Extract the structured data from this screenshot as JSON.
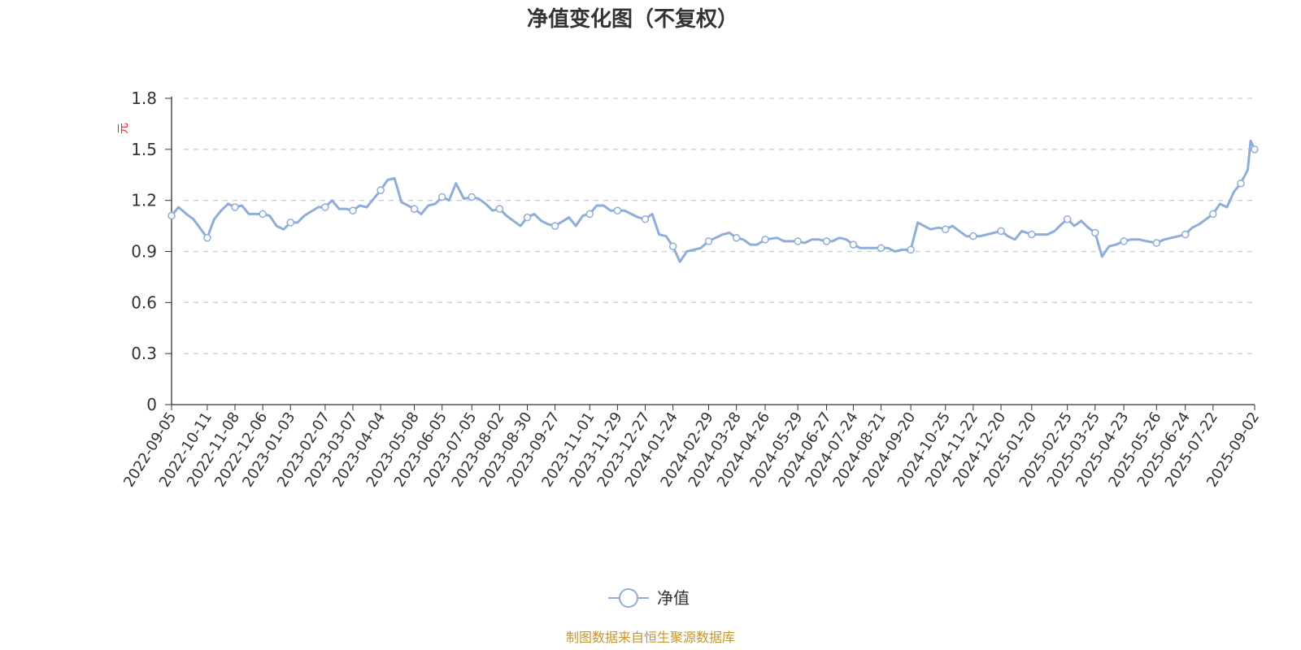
{
  "chart_data": {
    "type": "line",
    "title": "净值变化图（不复权）",
    "ylabel": "元",
    "ylim": [
      0,
      1.8
    ],
    "yticks": [
      "0",
      "0.3",
      "0.6",
      "0.9",
      "1.2",
      "1.5",
      "1.8"
    ],
    "grid": true,
    "legend_position": "bottom-center",
    "x_tick_labels": [
      "2022-09-05",
      "2022-10-11",
      "2022-11-08",
      "2022-12-06",
      "2023-01-03",
      "2023-02-07",
      "2023-03-07",
      "2023-04-04",
      "2023-05-08",
      "2023-06-05",
      "2023-07-05",
      "2023-08-02",
      "2023-08-30",
      "2023-09-27",
      "2023-11-01",
      "2023-11-29",
      "2023-12-27",
      "2024-01-24",
      "2024-02-29",
      "2024-03-28",
      "2024-04-26",
      "2024-05-29",
      "2024-06-27",
      "2024-07-24",
      "2024-08-21",
      "2024-09-20",
      "2024-10-25",
      "2024-11-22",
      "2024-12-20",
      "2025-01-20",
      "2025-02-25",
      "2025-03-25",
      "2025-04-23",
      "2025-05-26",
      "2025-06-24",
      "2025-07-22",
      "2025-09-02"
    ],
    "series": [
      {
        "name": "净值",
        "color": "#8eadd9",
        "x": [
          "2022-09-05",
          "2022-09-12",
          "2022-09-20",
          "2022-09-27",
          "2022-10-11",
          "2022-10-18",
          "2022-10-25",
          "2022-11-01",
          "2022-11-08",
          "2022-11-15",
          "2022-11-22",
          "2022-11-29",
          "2022-12-06",
          "2022-12-13",
          "2022-12-20",
          "2022-12-27",
          "2023-01-03",
          "2023-01-10",
          "2023-01-17",
          "2023-01-31",
          "2023-02-07",
          "2023-02-14",
          "2023-02-21",
          "2023-02-28",
          "2023-03-07",
          "2023-03-14",
          "2023-03-21",
          "2023-03-28",
          "2023-04-04",
          "2023-04-11",
          "2023-04-18",
          "2023-04-25",
          "2023-05-08",
          "2023-05-15",
          "2023-05-22",
          "2023-05-29",
          "2023-06-05",
          "2023-06-12",
          "2023-06-19",
          "2023-06-27",
          "2023-07-05",
          "2023-07-12",
          "2023-07-19",
          "2023-07-26",
          "2023-08-02",
          "2023-08-09",
          "2023-08-16",
          "2023-08-23",
          "2023-08-30",
          "2023-09-06",
          "2023-09-13",
          "2023-09-20",
          "2023-09-27",
          "2023-10-11",
          "2023-10-18",
          "2023-10-25",
          "2023-11-01",
          "2023-11-08",
          "2023-11-15",
          "2023-11-22",
          "2023-11-29",
          "2023-12-06",
          "2023-12-13",
          "2023-12-20",
          "2023-12-27",
          "2024-01-03",
          "2024-01-10",
          "2024-01-17",
          "2024-01-24",
          "2024-01-31",
          "2024-02-07",
          "2024-02-21",
          "2024-02-29",
          "2024-03-07",
          "2024-03-14",
          "2024-03-21",
          "2024-03-28",
          "2024-04-04",
          "2024-04-11",
          "2024-04-18",
          "2024-04-26",
          "2024-05-08",
          "2024-05-15",
          "2024-05-22",
          "2024-05-29",
          "2024-06-05",
          "2024-06-12",
          "2024-06-19",
          "2024-06-27",
          "2024-07-03",
          "2024-07-10",
          "2024-07-17",
          "2024-07-24",
          "2024-07-31",
          "2024-08-07",
          "2024-08-14",
          "2024-08-21",
          "2024-08-28",
          "2024-09-04",
          "2024-09-11",
          "2024-09-20",
          "2024-09-27",
          "2024-10-10",
          "2024-10-18",
          "2024-10-25",
          "2024-11-01",
          "2024-11-08",
          "2024-11-15",
          "2024-11-22",
          "2024-11-29",
          "2024-12-06",
          "2024-12-13",
          "2024-12-20",
          "2024-12-27",
          "2025-01-03",
          "2025-01-10",
          "2025-01-20",
          "2025-02-05",
          "2025-02-12",
          "2025-02-19",
          "2025-02-25",
          "2025-03-04",
          "2025-03-11",
          "2025-03-18",
          "2025-03-25",
          "2025-04-01",
          "2025-04-08",
          "2025-04-15",
          "2025-04-23",
          "2025-04-30",
          "2025-05-09",
          "2025-05-16",
          "2025-05-26",
          "2025-06-03",
          "2025-06-10",
          "2025-06-17",
          "2025-06-24",
          "2025-07-01",
          "2025-07-08",
          "2025-07-15",
          "2025-07-22",
          "2025-07-29",
          "2025-08-05",
          "2025-08-12",
          "2025-08-19",
          "2025-08-26",
          "2025-08-29",
          "2025-09-02"
        ],
        "values": [
          1.11,
          1.16,
          1.12,
          1.09,
          0.98,
          1.09,
          1.14,
          1.18,
          1.16,
          1.17,
          1.12,
          1.12,
          1.12,
          1.11,
          1.05,
          1.03,
          1.07,
          1.07,
          1.11,
          1.16,
          1.16,
          1.2,
          1.15,
          1.15,
          1.14,
          1.17,
          1.16,
          1.21,
          1.26,
          1.32,
          1.33,
          1.19,
          1.15,
          1.12,
          1.17,
          1.18,
          1.22,
          1.2,
          1.3,
          1.21,
          1.22,
          1.21,
          1.18,
          1.14,
          1.15,
          1.11,
          1.08,
          1.05,
          1.1,
          1.12,
          1.08,
          1.06,
          1.05,
          1.1,
          1.05,
          1.11,
          1.12,
          1.17,
          1.17,
          1.14,
          1.14,
          1.14,
          1.12,
          1.1,
          1.09,
          1.12,
          1.0,
          0.99,
          0.93,
          0.84,
          0.9,
          0.92,
          0.96,
          0.98,
          1.0,
          1.01,
          0.98,
          0.97,
          0.94,
          0.94,
          0.97,
          0.98,
          0.96,
          0.96,
          0.96,
          0.95,
          0.97,
          0.97,
          0.96,
          0.96,
          0.98,
          0.97,
          0.94,
          0.92,
          0.92,
          0.92,
          0.92,
          0.92,
          0.9,
          0.91,
          0.91,
          1.07,
          1.03,
          1.04,
          1.03,
          1.05,
          1.02,
          0.99,
          0.99,
          0.99,
          1.0,
          1.01,
          1.02,
          0.99,
          0.97,
          1.02,
          1.0,
          1.0,
          1.02,
          1.06,
          1.09,
          1.05,
          1.08,
          1.04,
          1.01,
          0.87,
          0.93,
          0.94,
          0.96,
          0.97,
          0.97,
          0.96,
          0.95,
          0.97,
          0.98,
          0.99,
          1.0,
          1.04,
          1.06,
          1.09,
          1.12,
          1.18,
          1.16,
          1.25,
          1.3,
          1.38,
          1.55,
          1.5
        ],
        "marked_points": [
          "2022-09-05",
          "2022-10-11",
          "2022-11-08",
          "2022-12-06",
          "2023-01-03",
          "2023-02-07",
          "2023-03-07",
          "2023-04-04",
          "2023-05-08",
          "2023-06-05",
          "2023-07-05",
          "2023-08-02",
          "2023-08-30",
          "2023-09-27",
          "2023-11-01",
          "2023-11-29",
          "2023-12-27",
          "2024-01-24",
          "2024-02-29",
          "2024-03-28",
          "2024-04-26",
          "2024-05-29",
          "2024-06-27",
          "2024-07-24",
          "2024-08-21",
          "2024-09-20",
          "2024-10-25",
          "2024-11-22",
          "2024-12-20",
          "2025-01-20",
          "2025-02-25",
          "2025-03-25",
          "2025-04-23",
          "2025-05-26",
          "2025-06-24",
          "2025-07-22",
          "2025-08-19",
          "2025-09-02"
        ]
      }
    ]
  },
  "legend": {
    "label": "净值"
  },
  "footer": {
    "source": "制图数据来自恒生聚源数据库"
  }
}
